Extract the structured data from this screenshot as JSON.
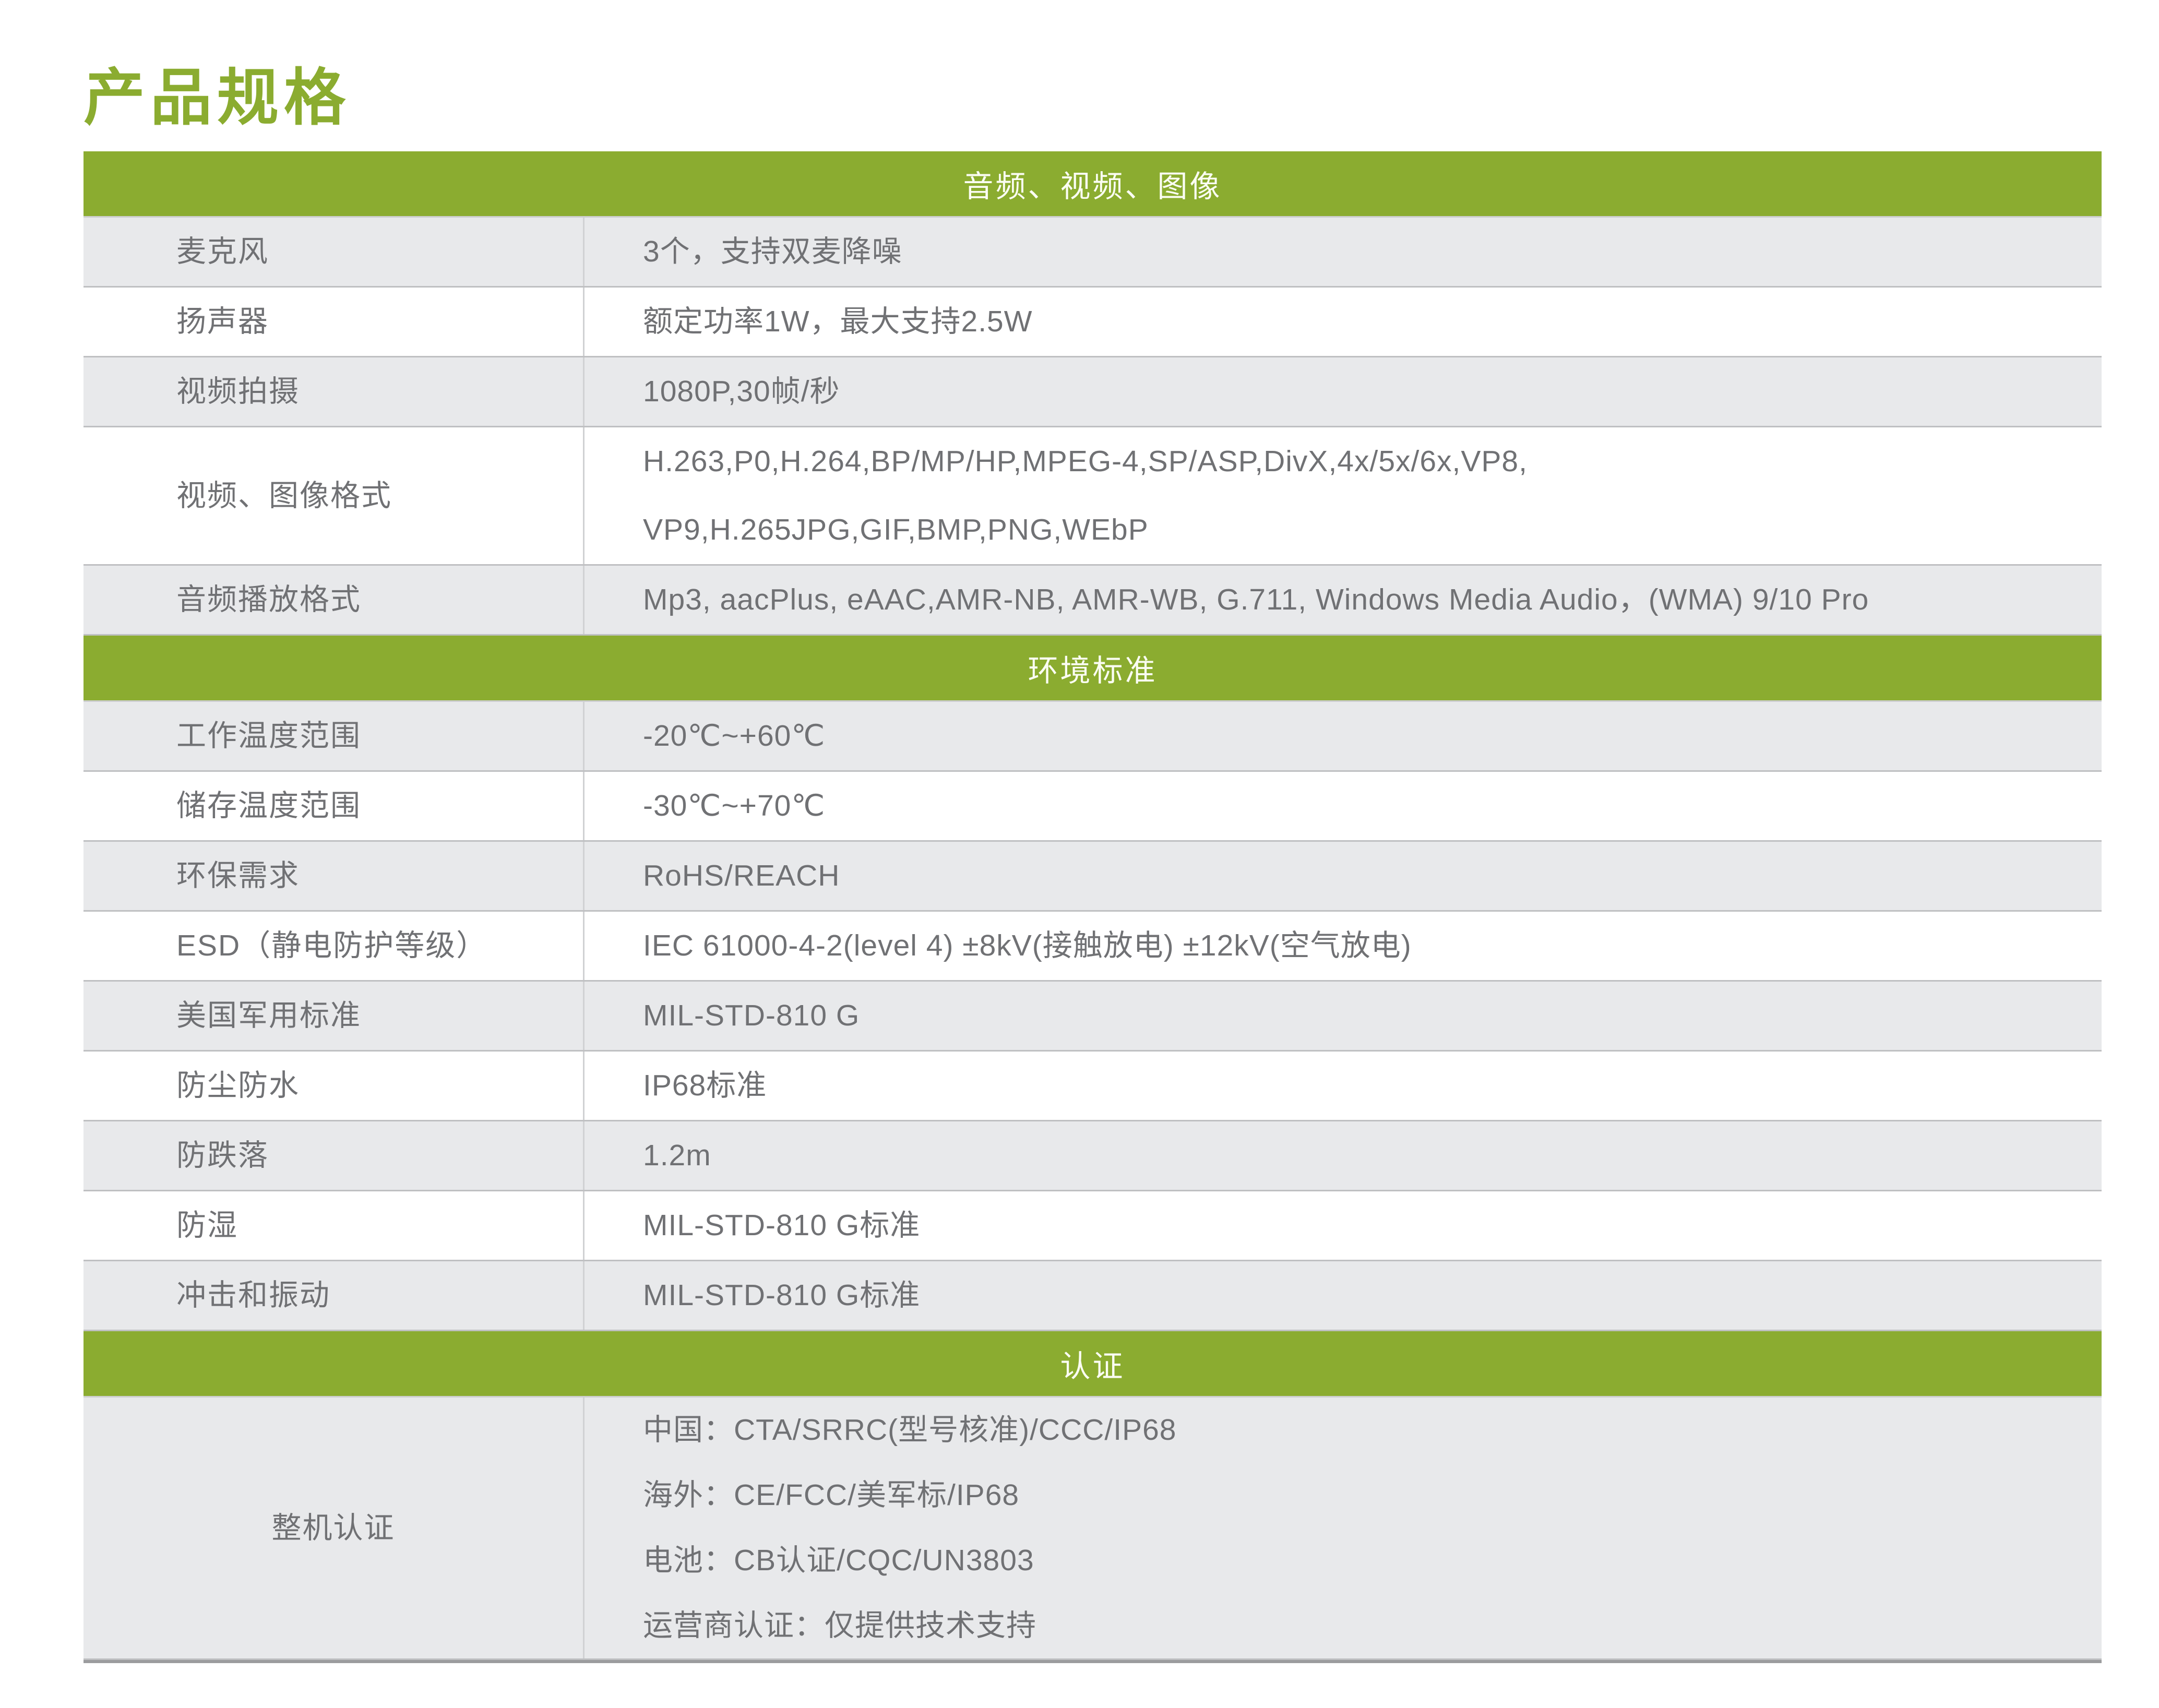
{
  "page_title": "产品规格",
  "colors": {
    "green": "#8bac30",
    "row_gray": "#e8e9eb",
    "row_white": "#ffffff",
    "text": "#707174",
    "header_text": "#fbfdf3"
  },
  "table": {
    "sections": [
      {
        "header": "音频、视频、图像",
        "rows": [
          {
            "label": "麦克风",
            "values": [
              "3个，支持双麦降噪"
            ]
          },
          {
            "label": "扬声器",
            "values": [
              "额定功率1W，最大支持2.5W"
            ]
          },
          {
            "label": "视频拍摄",
            "values": [
              "1080P,30帧/秒"
            ]
          },
          {
            "label": "视频、图像格式",
            "values": [
              "H.263,P0,H.264,BP/MP/HP,MPEG-4,SP/ASP,DivX,4x/5x/6x,VP8,",
              "VP9,H.265JPG,GIF,BMP,PNG,WEbP"
            ]
          },
          {
            "label": "音频播放格式",
            "values": [
              "Mp3, aacPlus, eAAC,AMR-NB, AMR-WB, G.711, Windows Media Audio，(WMA) 9/10 Pro"
            ]
          }
        ]
      },
      {
        "header": "环境标准",
        "rows": [
          {
            "label": "工作温度范围",
            "values": [
              "-20℃~+60℃"
            ]
          },
          {
            "label": "储存温度范围",
            "values": [
              "-30℃~+70℃"
            ]
          },
          {
            "label": "环保需求",
            "values": [
              "RoHS/REACH"
            ]
          },
          {
            "label": "ESD（静电防护等级）",
            "values": [
              "IEC 61000-4-2(level 4) ±8kV(接触放电) ±12kV(空气放电)"
            ]
          },
          {
            "label": "美国军用标准",
            "values": [
              "MIL-STD-810 G"
            ]
          },
          {
            "label": "防尘防水",
            "values": [
              "IP68标准"
            ]
          },
          {
            "label": "防跌落",
            "values": [
              "1.2m"
            ]
          },
          {
            "label": "防湿",
            "values": [
              "MIL-STD-810 G标准"
            ]
          },
          {
            "label": "冲击和振动",
            "values": [
              "MIL-STD-810 G标准"
            ]
          }
        ]
      },
      {
        "header": "认证",
        "rows": [
          {
            "label": "整机认证",
            "label_align": "center",
            "values": [
              "中国：CTA/SRRC(型号核准)/CCC/IP68",
              "海外：CE/FCC/美军标/IP68",
              "电池：CB认证/CQC/UN3803",
              "运营商认证：仅提供技术支持"
            ]
          }
        ]
      }
    ]
  }
}
